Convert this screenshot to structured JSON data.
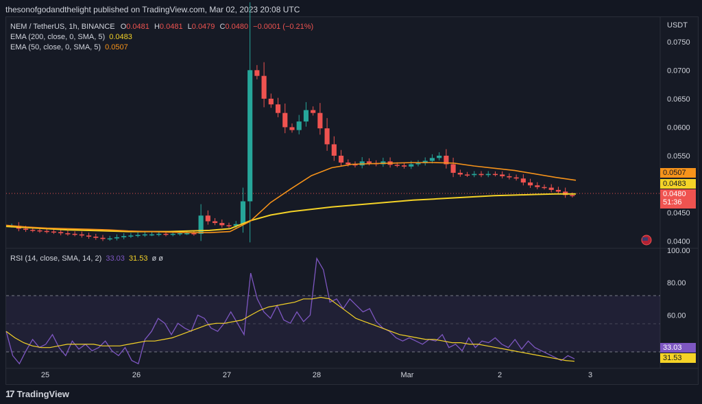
{
  "publisher": "thesonofgodandthelight published on TradingView.com, Mar 02, 2023 20:08 UTC",
  "legend": {
    "symbol": "NEM / TetherUS, 1h, BINANCE",
    "o_label": "O",
    "o": "0.0481",
    "h_label": "H",
    "h": "0.0481",
    "l_label": "L",
    "l": "0.0479",
    "c_label": "C",
    "c": "0.0480",
    "change": "−0.0001 (−0.21%)",
    "ema200": "EMA (200, close, 0, SMA, 5)",
    "ema200_val": "0.0483",
    "ema50": "EMA (50, close, 0, SMA, 5)",
    "ema50_val": "0.0507",
    "rsi": "RSI (14, close, SMA, 14, 2)",
    "rsi_val": "33.03",
    "rsi_ma_val": "31.53",
    "rsi_extra": "ø ø"
  },
  "price_axis": {
    "unit": "USDT",
    "ticks": [
      "0.0750",
      "0.0700",
      "0.0650",
      "0.0600",
      "0.0550",
      "0.0450",
      "0.0400"
    ]
  },
  "price_labels": {
    "ema50": "0.0507",
    "ema200": "0.0483",
    "last": "0.0480",
    "countdown": "51:36"
  },
  "rsi_axis": {
    "ticks": [
      "100.00",
      "80.00",
      "60.00",
      "40.00"
    ]
  },
  "rsi_labels": {
    "rsi": "33.03",
    "ma": "31.53"
  },
  "time_axis": [
    "25",
    "26",
    "27",
    "28",
    "Mar",
    "2",
    "3"
  ],
  "brand": "TradingView",
  "colors": {
    "up": "#26a69a",
    "down": "#ef5350",
    "ema50": "#f7931a",
    "ema200": "#f5d327",
    "rsi": "#7e57c2",
    "rsi_ma": "#f5d327",
    "bg": "#161a25"
  },
  "chart_data": [
    {
      "type": "candlestick",
      "title": "NEM / TetherUS, 1h, BINANCE",
      "ylabel": "USDT",
      "ylim": [
        0.039,
        0.0775
      ],
      "x_ticks": [
        "25",
        "26",
        "27",
        "28",
        "Mar",
        "2",
        "3"
      ],
      "price_series": [
        0.0427,
        0.0422,
        0.042,
        0.0419,
        0.0418,
        0.0417,
        0.0416,
        0.0414,
        0.0413,
        0.0412,
        0.041,
        0.0408,
        0.0406,
        0.0404,
        0.0405,
        0.0407,
        0.0409,
        0.041,
        0.0411,
        0.0412,
        0.0412,
        0.0413,
        0.0412,
        0.0413,
        0.0414,
        0.0414,
        0.0413,
        0.0445,
        0.0435,
        0.0432,
        0.0428,
        0.0427,
        0.043,
        0.047,
        0.07,
        0.069,
        0.065,
        0.064,
        0.0625,
        0.06,
        0.0595,
        0.061,
        0.063,
        0.0625,
        0.0598,
        0.057,
        0.055,
        0.0538,
        0.0535,
        0.0533,
        0.054,
        0.0537,
        0.0535,
        0.054,
        0.0534,
        0.0533,
        0.0531,
        0.0535,
        0.0537,
        0.0541,
        0.0546,
        0.055,
        0.0535,
        0.052,
        0.0517,
        0.0516,
        0.0518,
        0.0516,
        0.0518,
        0.0517,
        0.0514,
        0.0512,
        0.051,
        0.0503,
        0.0498,
        0.0495,
        0.0494,
        0.049,
        0.0487,
        0.0481,
        0.048
      ],
      "series": [
        {
          "name": "EMA (200, close, 0, SMA, 5)",
          "last": 0.0483
        },
        {
          "name": "EMA (50, close, 0, SMA, 5)",
          "last": 0.0507
        }
      ],
      "ema200_values": [
        0.0426,
        0.0424,
        0.0422,
        0.042,
        0.0419,
        0.0418,
        0.0417,
        0.0417,
        0.0417,
        0.0418,
        0.0419,
        0.0422,
        0.0436,
        0.0446,
        0.0452,
        0.0456,
        0.046,
        0.0463,
        0.0466,
        0.0469,
        0.0472,
        0.0474,
        0.0476,
        0.0478,
        0.048,
        0.0481,
        0.0482,
        0.0483,
        0.0483
      ],
      "ema50_values": [
        0.0428,
        0.0425,
        0.0423,
        0.0422,
        0.0421,
        0.042,
        0.0418,
        0.0417,
        0.0416,
        0.0415,
        0.0415,
        0.0417,
        0.0435,
        0.0468,
        0.0492,
        0.0515,
        0.0529,
        0.0535,
        0.0536,
        0.0537,
        0.0538,
        0.0538,
        0.0537,
        0.0532,
        0.0528,
        0.0524,
        0.0518,
        0.0512,
        0.0507
      ]
    },
    {
      "type": "line",
      "title": "RSI (14, close, SMA, 14, 2)",
      "ylim": [
        28,
        100
      ],
      "bands": [
        30,
        50,
        70
      ],
      "series": [
        {
          "name": "RSI",
          "last": 33.03,
          "values": [
            50,
            35,
            30,
            38,
            45,
            40,
            42,
            48,
            40,
            35,
            44,
            39,
            42,
            38,
            40,
            44,
            38,
            35,
            40,
            32,
            30,
            45,
            50,
            58,
            55,
            48,
            55,
            52,
            50,
            60,
            58,
            52,
            50,
            55,
            62,
            55,
            48,
            86,
            70,
            62,
            58,
            66,
            57,
            55,
            62,
            56,
            60,
            95,
            88,
            68,
            70,
            64,
            70,
            66,
            62,
            64,
            56,
            52,
            50,
            46,
            44,
            46,
            44,
            42,
            45,
            44,
            48,
            40,
            42,
            38,
            46,
            40,
            44,
            43,
            46,
            42,
            40,
            45,
            39,
            44,
            40,
            38,
            36,
            34,
            32,
            35,
            33
          ]
        },
        {
          "name": "MA",
          "last": 31.53,
          "values": [
            50,
            46,
            43,
            41,
            40,
            40,
            41,
            42,
            42,
            42,
            42,
            41,
            41,
            41,
            42,
            43,
            44,
            44,
            45,
            46,
            48,
            50,
            52,
            54,
            55,
            55,
            56,
            57,
            60,
            63,
            65,
            66,
            67,
            68,
            70,
            70,
            71,
            70,
            66,
            62,
            58,
            56,
            54,
            52,
            50,
            48,
            47,
            46,
            45,
            45,
            44,
            43,
            43,
            42,
            42,
            41,
            40,
            39,
            38,
            37,
            36,
            35,
            34,
            33,
            32,
            31.5
          ]
        }
      ]
    }
  ]
}
